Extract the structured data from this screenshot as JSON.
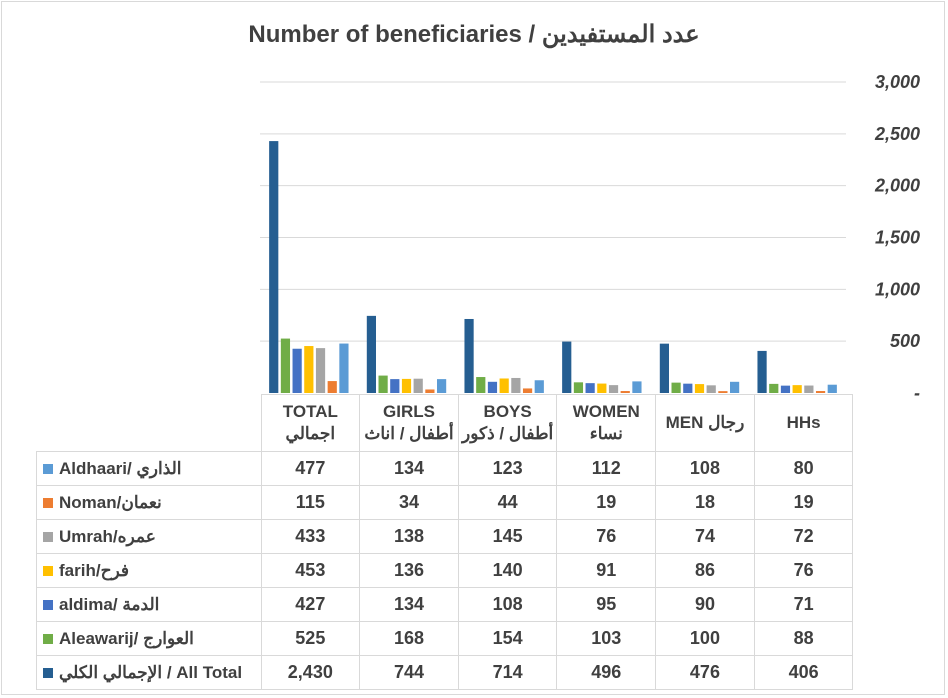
{
  "chart_data": {
    "type": "bar",
    "title": "Number of beneficiaries  /  عدد المستفيدين",
    "ylim": [
      0,
      3000
    ],
    "yticks": [
      "-",
      "500",
      "1,000",
      "1,500",
      "2,000",
      "2,500",
      "3,000"
    ],
    "grid": true,
    "legend": "table-left",
    "categories": [
      {
        "en": "TOTAL",
        "ar": "اجمالي"
      },
      {
        "en": "GIRLS",
        "ar": "أطفال / اناث"
      },
      {
        "en": "BOYS",
        "ar": "أطفال / ذكور"
      },
      {
        "en": "WOMEN",
        "ar": "نساء"
      },
      {
        "en": "MEN رجال",
        "ar": ""
      },
      {
        "en": "HHs",
        "ar": ""
      }
    ],
    "series": [
      {
        "name": "الإجمالي الكلي / All Total",
        "color": "#255e91",
        "values": [
          2430,
          744,
          714,
          496,
          476,
          406
        ],
        "labels": [
          "2,430",
          "744",
          "714",
          "496",
          "476",
          "406"
        ]
      },
      {
        "name": "Aleawarij/ العوارج",
        "color": "#70ad47",
        "values": [
          525,
          168,
          154,
          103,
          100,
          88
        ],
        "labels": [
          "525",
          "168",
          "154",
          "103",
          "100",
          "88"
        ]
      },
      {
        "name": "aldima/ الدمة",
        "color": "#4472c4",
        "values": [
          427,
          134,
          108,
          95,
          90,
          71
        ],
        "labels": [
          "427",
          "134",
          "108",
          "95",
          "90",
          "71"
        ]
      },
      {
        "name": "farih/فرح",
        "color": "#ffc000",
        "values": [
          453,
          136,
          140,
          91,
          86,
          76
        ],
        "labels": [
          "453",
          "136",
          "140",
          "91",
          "86",
          "76"
        ]
      },
      {
        "name": "Umrah/عمره",
        "color": "#a5a5a5",
        "values": [
          433,
          138,
          145,
          76,
          74,
          72
        ],
        "labels": [
          "433",
          "138",
          "145",
          "76",
          "74",
          "72"
        ]
      },
      {
        "name": "Noman/نعمان",
        "color": "#ed7d31",
        "values": [
          115,
          34,
          44,
          19,
          18,
          19
        ],
        "labels": [
          "115",
          "34",
          "44",
          "19",
          "18",
          "19"
        ]
      },
      {
        "name": "Aldhaari/ الذاري",
        "color": "#5b9bd5",
        "values": [
          477,
          134,
          123,
          112,
          108,
          80
        ],
        "labels": [
          "477",
          "134",
          "123",
          "112",
          "108",
          "80"
        ]
      }
    ],
    "table_row_order": [
      6,
      5,
      4,
      3,
      2,
      1,
      0
    ]
  }
}
